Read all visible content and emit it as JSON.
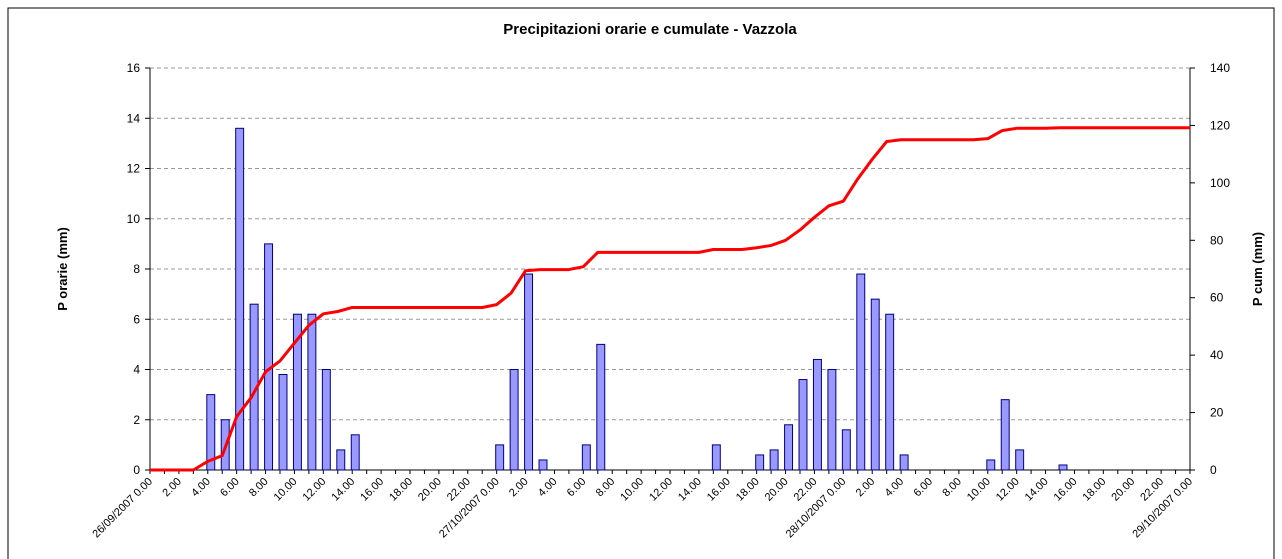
{
  "chart_data": {
    "type": "bar+line",
    "title": "Precipitazioni orarie e cumulate - Vazzola",
    "y_label": "P orarie (mm)",
    "y2_label": "P cum (mm)",
    "categories": [
      "26/09/2007 0.00",
      null,
      "2.00",
      null,
      "4.00",
      null,
      "6.00",
      null,
      "8.00",
      null,
      "10.00",
      null,
      "12.00",
      null,
      "14.00",
      null,
      "16.00",
      null,
      "18.00",
      null,
      "20.00",
      null,
      "22.00",
      null,
      "27/10/2007 0.00",
      null,
      "2.00",
      null,
      "4.00",
      null,
      "6.00",
      null,
      "8.00",
      null,
      "10.00",
      null,
      "12.00",
      null,
      "14.00",
      null,
      "16.00",
      null,
      "18.00",
      null,
      "20.00",
      null,
      "22.00",
      null,
      "28/10/2007 0.00",
      null,
      "2.00",
      null,
      "4.00",
      null,
      "6.00",
      null,
      "8.00",
      null,
      "10.00",
      null,
      "12.00",
      null,
      "14.00",
      null,
      "16.00",
      null,
      "18.00",
      null,
      "20.00",
      null,
      "22.00",
      null,
      "29/10/2007 0.00"
    ],
    "series": [
      {
        "type": "bar",
        "axis": "y",
        "color": "#9999ff",
        "edgecolor": "#000080",
        "values": [
          0,
          0,
          0,
          0,
          3,
          2,
          13.6,
          6.6,
          9,
          3.8,
          6.2,
          6.2,
          4,
          0.8,
          1.4,
          0,
          0,
          0,
          0,
          0,
          0,
          0,
          0,
          0,
          1,
          4,
          7.8,
          0.4,
          0,
          0,
          1,
          5,
          0,
          0,
          0,
          0,
          0,
          0,
          0,
          1,
          0,
          0,
          0.6,
          0.8,
          1.8,
          3.6,
          4.4,
          4,
          1.6,
          7.8,
          6.8,
          6.2,
          0.6,
          0,
          0,
          0,
          0,
          0,
          0.4,
          2.8,
          0.8,
          0,
          0,
          0.2,
          0,
          0,
          0,
          0,
          0,
          0,
          0,
          0,
          0
        ]
      },
      {
        "type": "line",
        "axis": "y2",
        "color": "#ff0000",
        "values": [
          0,
          0,
          0,
          0,
          3,
          5,
          18.6,
          25.2,
          34.2,
          38,
          44.2,
          50.4,
          54.4,
          55.2,
          56.6,
          56.6,
          56.6,
          56.6,
          56.6,
          56.6,
          56.6,
          56.6,
          56.6,
          56.6,
          57.6,
          61.6,
          69.4,
          69.8,
          69.8,
          69.8,
          70.8,
          75.8,
          75.8,
          75.8,
          75.8,
          75.8,
          75.8,
          75.8,
          75.8,
          76.8,
          76.8,
          76.8,
          77.4,
          78.2,
          80,
          83.6,
          88,
          92,
          93.6,
          101.4,
          108.2,
          114.4,
          115,
          115,
          115,
          115,
          115,
          115,
          115.4,
          118.2,
          119,
          119,
          119,
          119.2,
          119.2,
          119.2,
          119.2,
          119.2,
          119.2,
          119.2,
          119.2,
          119.2,
          119.2
        ]
      }
    ],
    "ylim": [
      0,
      16
    ],
    "yticks": [
      0,
      2,
      4,
      6,
      8,
      10,
      12,
      14,
      16
    ],
    "y2lim": [
      0,
      140
    ],
    "y2ticks": [
      0,
      20,
      40,
      60,
      80,
      100,
      120,
      140
    ],
    "grid": true
  }
}
